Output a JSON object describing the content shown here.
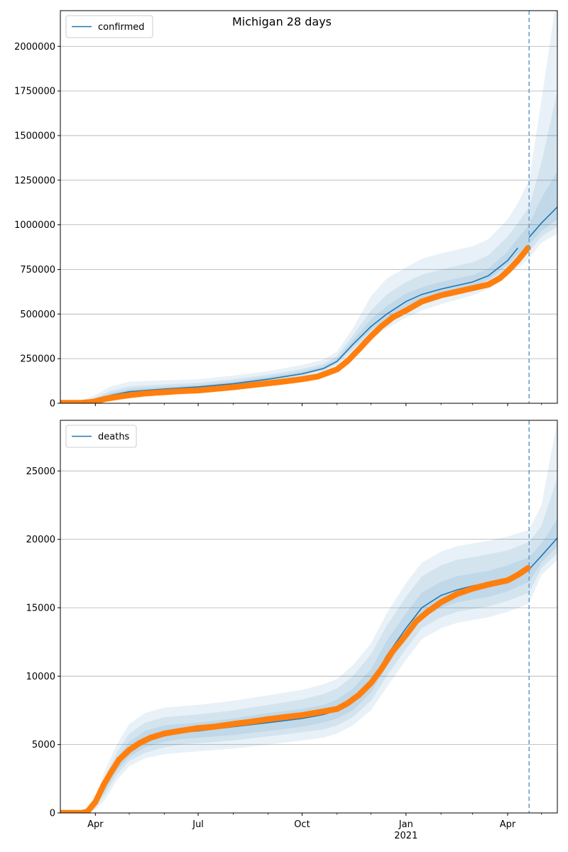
{
  "figure": {
    "title": "Michigan 28 days"
  },
  "colors": {
    "model": "#1f77b4",
    "observed": "#ff7f0e",
    "band": "#1f77b4",
    "grid": "#b0b0b0",
    "forecast_line": "#6ea0c8"
  },
  "x_axis": {
    "start": "2020-03-01",
    "end": "2021-05-15",
    "ticks": [
      {
        "date": "2020-04-01",
        "label": "Apr",
        "sublabel": ""
      },
      {
        "date": "2020-07-01",
        "label": "Jul",
        "sublabel": ""
      },
      {
        "date": "2020-10-01",
        "label": "Oct",
        "sublabel": ""
      },
      {
        "date": "2021-01-01",
        "label": "Jan",
        "sublabel": "2021"
      },
      {
        "date": "2021-04-01",
        "label": "Apr",
        "sublabel": ""
      }
    ],
    "minor_ticks": [
      "2020-05-01",
      "2020-06-01",
      "2020-08-01",
      "2020-09-01",
      "2020-11-01",
      "2020-12-01",
      "2021-02-01",
      "2021-03-01",
      "2021-05-01"
    ]
  },
  "chart_data": [
    {
      "type": "line",
      "legend": "confirmed",
      "legend_position": "upper-left",
      "ylim": [
        0,
        2200000
      ],
      "yticks": [
        0,
        250000,
        500000,
        750000,
        1000000,
        1250000,
        1500000,
        1750000,
        2000000
      ],
      "grid": "y",
      "forecast_start": "2021-04-20",
      "model": {
        "dates": [
          "2020-03-01",
          "2020-03-15",
          "2020-03-30",
          "2020-04-15",
          "2020-05-01",
          "2020-06-01",
          "2020-07-01",
          "2020-08-01",
          "2020-09-01",
          "2020-10-01",
          "2020-10-20",
          "2020-11-01",
          "2020-11-15",
          "2020-12-01",
          "2020-12-15",
          "2021-01-01",
          "2021-01-15",
          "2021-02-01",
          "2021-02-15",
          "2021-03-01",
          "2021-03-15",
          "2021-04-01",
          "2021-04-10",
          "2021-04-20",
          "2021-05-01",
          "2021-05-15"
        ],
        "values": [
          5000,
          5000,
          15000,
          45000,
          65000,
          80000,
          92000,
          110000,
          135000,
          165000,
          195000,
          235000,
          330000,
          430000,
          500000,
          570000,
          610000,
          640000,
          660000,
          680000,
          715000,
          800000,
          870000,
          930000,
          1010000,
          1100000
        ]
      },
      "bands": [
        {
          "lower": [
            0,
            0,
            5000,
            15000,
            35000,
            55000,
            70000,
            90000,
            115000,
            145000,
            175000,
            210000,
            280000,
            360000,
            420000,
            480000,
            520000,
            555000,
            580000,
            605000,
            640000,
            720000,
            760000,
            810000,
            900000,
            950000
          ],
          "upper": [
            10000,
            10000,
            40000,
            95000,
            120000,
            128000,
            135000,
            155000,
            180000,
            215000,
            245000,
            290000,
            420000,
            600000,
            700000,
            760000,
            810000,
            840000,
            860000,
            880000,
            920000,
            1030000,
            1120000,
            1250000,
            1700000,
            2300000
          ]
        },
        {
          "lower": [
            0,
            0,
            8000,
            25000,
            45000,
            65000,
            80000,
            98000,
            123000,
            153000,
            183000,
            220000,
            300000,
            390000,
            455000,
            515000,
            560000,
            590000,
            612000,
            635000,
            670000,
            755000,
            800000,
            850000,
            935000,
            990000
          ],
          "upper": [
            8000,
            8000,
            28000,
            70000,
            95000,
            105000,
            115000,
            135000,
            160000,
            192000,
            222000,
            265000,
            380000,
            520000,
            610000,
            680000,
            720000,
            750000,
            770000,
            790000,
            830000,
            935000,
            1010000,
            1100000,
            1350000,
            1750000
          ]
        },
        {
          "lower": [
            0,
            0,
            10000,
            35000,
            55000,
            72000,
            86000,
            104000,
            129000,
            159000,
            189000,
            228000,
            315000,
            410000,
            478000,
            542000,
            585000,
            615000,
            637000,
            657000,
            692000,
            778000,
            835000,
            890000,
            965000,
            1030000
          ],
          "upper": [
            6000,
            6000,
            22000,
            58000,
            80000,
            92000,
            103000,
            122000,
            148000,
            178000,
            208000,
            248000,
            355000,
            470000,
            545000,
            615000,
            650000,
            680000,
            700000,
            718000,
            755000,
            850000,
            925000,
            1000000,
            1150000,
            1300000
          ]
        }
      ],
      "observed": {
        "dates": [
          "2020-03-01",
          "2020-03-10",
          "2020-03-20",
          "2020-03-30",
          "2020-04-10",
          "2020-04-20",
          "2020-05-01",
          "2020-05-15",
          "2020-06-01",
          "2020-06-15",
          "2020-07-01",
          "2020-07-15",
          "2020-08-01",
          "2020-08-15",
          "2020-09-01",
          "2020-09-15",
          "2020-10-01",
          "2020-10-15",
          "2020-11-01",
          "2020-11-10",
          "2020-11-20",
          "2020-12-01",
          "2020-12-10",
          "2020-12-20",
          "2021-01-01",
          "2021-01-15",
          "2021-02-01",
          "2021-02-15",
          "2021-03-01",
          "2021-03-15",
          "2021-03-25",
          "2021-04-01",
          "2021-04-10",
          "2021-04-19"
        ],
        "values": [
          2000,
          2000,
          2000,
          8000,
          25000,
          35000,
          45000,
          55000,
          62000,
          68000,
          72000,
          80000,
          90000,
          100000,
          112000,
          122000,
          135000,
          150000,
          190000,
          235000,
          300000,
          375000,
          430000,
          480000,
          520000,
          570000,
          605000,
          625000,
          645000,
          665000,
          700000,
          740000,
          800000,
          870000
        ]
      }
    },
    {
      "type": "line",
      "legend": "deaths",
      "legend_position": "upper-left",
      "ylim": [
        0,
        28700
      ],
      "yticks": [
        0,
        5000,
        10000,
        15000,
        20000,
        25000
      ],
      "grid": "y",
      "forecast_start": "2021-04-20",
      "model": {
        "dates": [
          "2020-03-01",
          "2020-03-15",
          "2020-03-25",
          "2020-04-01",
          "2020-04-10",
          "2020-04-20",
          "2020-05-01",
          "2020-05-15",
          "2020-06-01",
          "2020-06-15",
          "2020-07-01",
          "2020-08-01",
          "2020-09-01",
          "2020-10-01",
          "2020-10-20",
          "2020-11-01",
          "2020-11-15",
          "2020-12-01",
          "2020-12-15",
          "2021-01-01",
          "2021-01-15",
          "2021-02-01",
          "2021-02-15",
          "2021-03-01",
          "2021-03-15",
          "2021-04-01",
          "2021-04-20",
          "2021-05-01",
          "2021-05-15"
        ],
        "values": [
          0,
          0,
          100,
          600,
          2000,
          3500,
          4500,
          5200,
          5700,
          5900,
          6000,
          6300,
          6600,
          6900,
          7200,
          7500,
          8200,
          9500,
          11500,
          13500,
          15000,
          15900,
          16300,
          16600,
          16800,
          17100,
          17800,
          18800,
          20100
        ]
      },
      "bands": [
        {
          "lower": [
            0,
            0,
            0,
            200,
            1000,
            2400,
            3400,
            4000,
            4300,
            4400,
            4500,
            4700,
            5000,
            5300,
            5500,
            5800,
            6400,
            7500,
            9200,
            11200,
            12700,
            13500,
            13900,
            14100,
            14300,
            14700,
            15300,
            17400,
            18500
          ],
          "upper": [
            0,
            0,
            300,
            1200,
            3200,
            5000,
            6500,
            7300,
            7700,
            7800,
            7900,
            8200,
            8600,
            9000,
            9400,
            9800,
            10800,
            12400,
            14600,
            16800,
            18300,
            19100,
            19500,
            19700,
            19900,
            20200,
            20700,
            22500,
            28700
          ]
        },
        {
          "lower": [
            0,
            0,
            30,
            350,
            1400,
            2800,
            3800,
            4400,
            4800,
            5000,
            5100,
            5300,
            5600,
            5900,
            6100,
            6400,
            7000,
            8200,
            10000,
            12000,
            13500,
            14300,
            14700,
            14900,
            15100,
            15500,
            16100,
            17900,
            19000
          ],
          "upper": [
            0,
            0,
            200,
            950,
            2700,
            4400,
            5800,
            6600,
            7000,
            7100,
            7200,
            7500,
            7900,
            8300,
            8700,
            9100,
            10000,
            11600,
            13700,
            15800,
            17300,
            18100,
            18500,
            18700,
            18900,
            19200,
            19800,
            21000,
            24500
          ]
        },
        {
          "lower": [
            0,
            0,
            60,
            450,
            1700,
            3100,
            4100,
            4800,
            5200,
            5400,
            5500,
            5700,
            6000,
            6300,
            6600,
            6900,
            7500,
            8800,
            10700,
            12700,
            14200,
            15000,
            15400,
            15600,
            15800,
            16200,
            16900,
            18300,
            19500
          ],
          "upper": [
            0,
            0,
            150,
            800,
            2400,
            4000,
            5200,
            6000,
            6400,
            6500,
            6600,
            6900,
            7300,
            7600,
            7900,
            8300,
            9100,
            10500,
            12600,
            14600,
            16100,
            16900,
            17300,
            17500,
            17700,
            18100,
            18700,
            19700,
            21500
          ]
        }
      ],
      "observed": {
        "dates": [
          "2020-03-01",
          "2020-03-10",
          "2020-03-20",
          "2020-03-25",
          "2020-04-01",
          "2020-04-08",
          "2020-04-15",
          "2020-04-22",
          "2020-05-01",
          "2020-05-10",
          "2020-05-20",
          "2020-06-01",
          "2020-06-15",
          "2020-07-01",
          "2020-07-15",
          "2020-08-01",
          "2020-08-15",
          "2020-09-01",
          "2020-09-15",
          "2020-10-01",
          "2020-10-15",
          "2020-11-01",
          "2020-11-10",
          "2020-11-20",
          "2020-12-01",
          "2020-12-10",
          "2020-12-20",
          "2021-01-01",
          "2021-01-10",
          "2021-01-20",
          "2021-02-01",
          "2021-02-15",
          "2021-03-01",
          "2021-03-15",
          "2021-04-01",
          "2021-04-10",
          "2021-04-19"
        ],
        "values": [
          0,
          0,
          0,
          100,
          800,
          2000,
          3000,
          3900,
          4600,
          5100,
          5500,
          5800,
          6000,
          6200,
          6300,
          6500,
          6650,
          6850,
          7000,
          7150,
          7350,
          7600,
          8000,
          8600,
          9500,
          10500,
          11800,
          13000,
          14000,
          14700,
          15400,
          16000,
          16400,
          16700,
          17000,
          17400,
          17900
        ]
      }
    }
  ]
}
